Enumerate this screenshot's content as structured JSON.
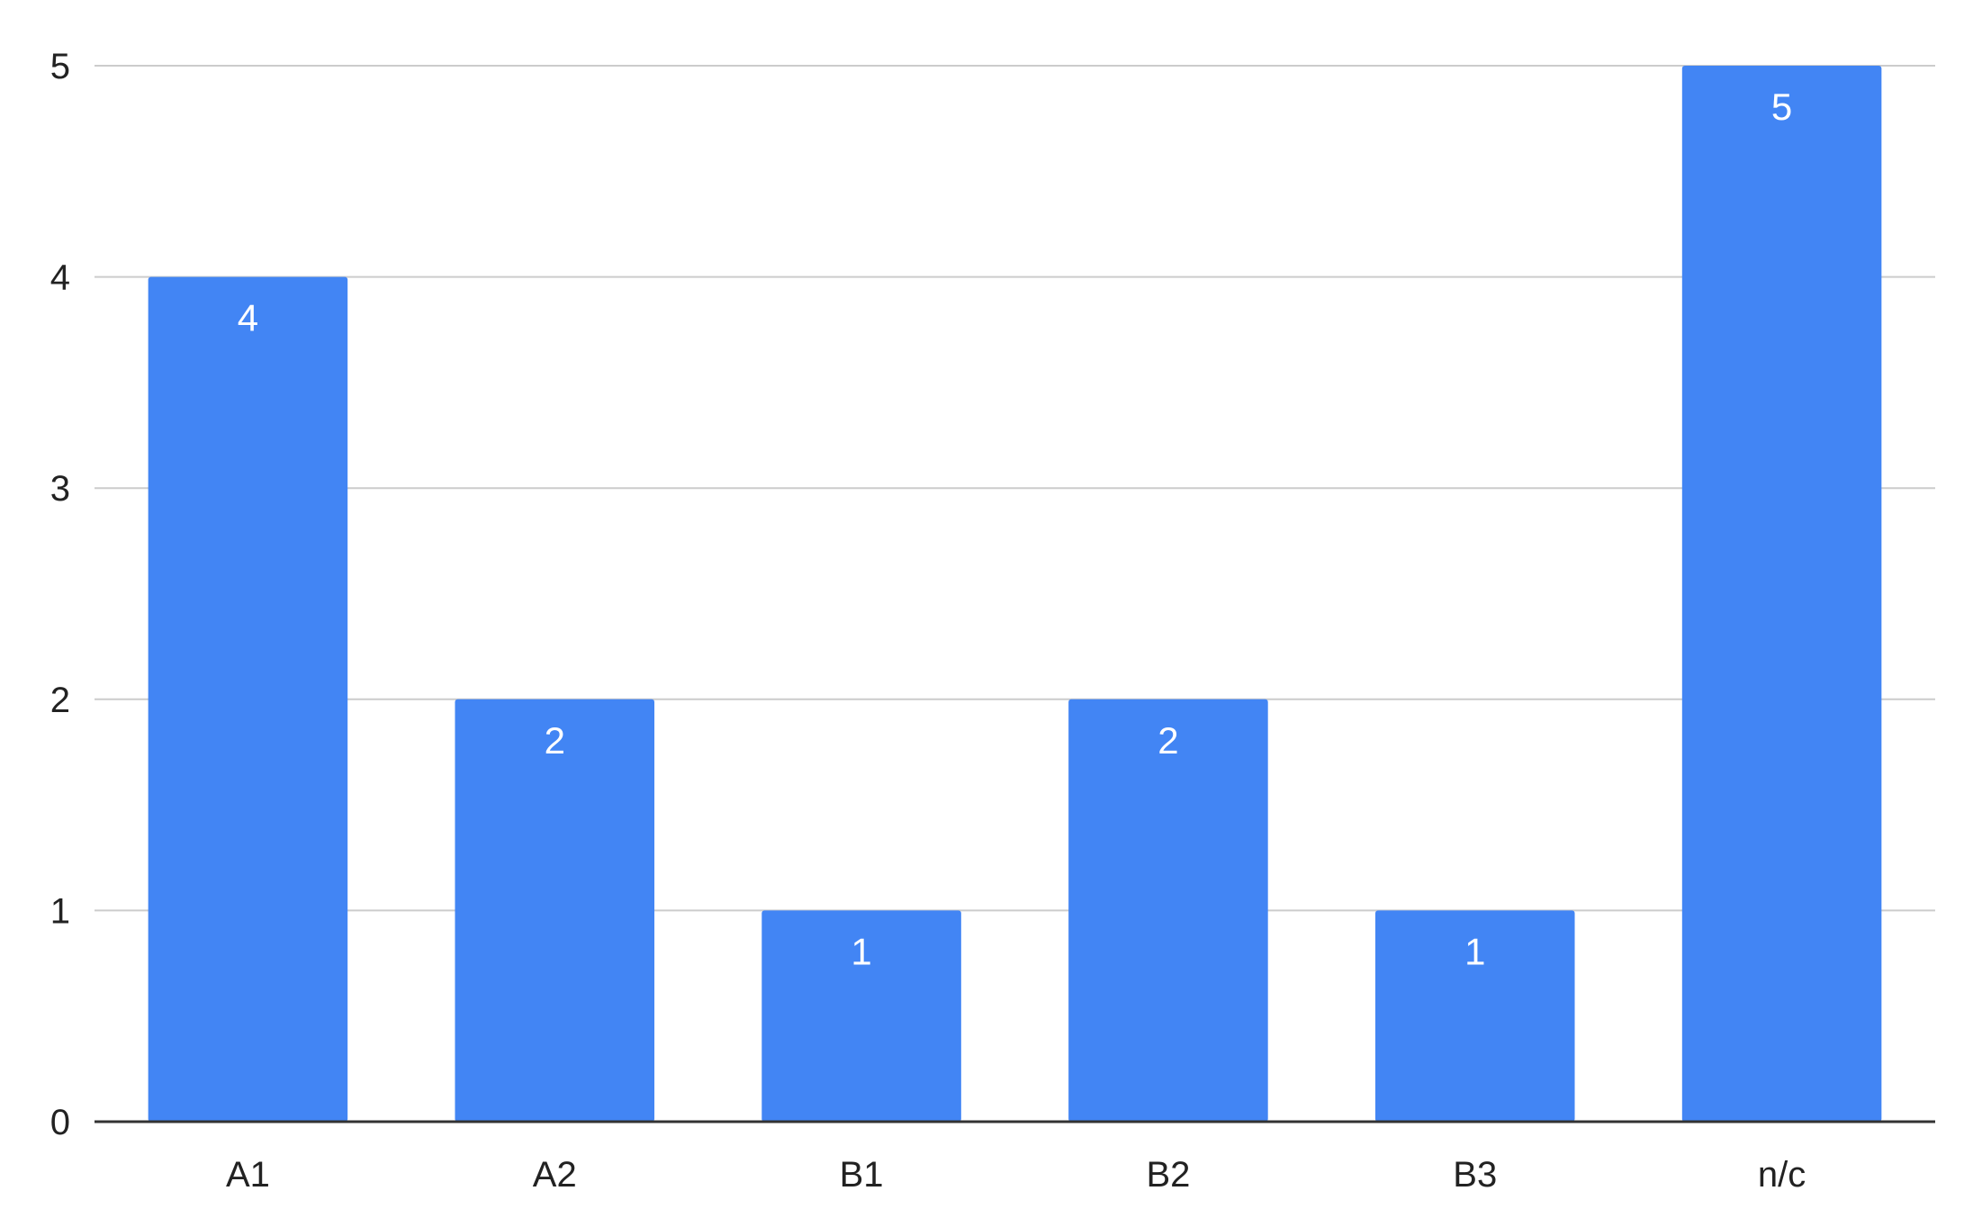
{
  "chart_data": {
    "type": "bar",
    "categories": [
      "A1",
      "A2",
      "B1",
      "B2",
      "B3",
      "n/c"
    ],
    "values": [
      4,
      2,
      1,
      2,
      1,
      5
    ],
    "data_labels": [
      "4",
      "2",
      "1",
      "2",
      "1",
      "5"
    ],
    "y_ticks": [
      "0",
      "1",
      "2",
      "3",
      "4",
      "5"
    ],
    "ylim": [
      0,
      5
    ],
    "grid": true,
    "legend": "none",
    "bar_color": "#4285F4",
    "label_color": "#FFFFFF",
    "title": "",
    "xlabel": "",
    "ylabel": ""
  }
}
